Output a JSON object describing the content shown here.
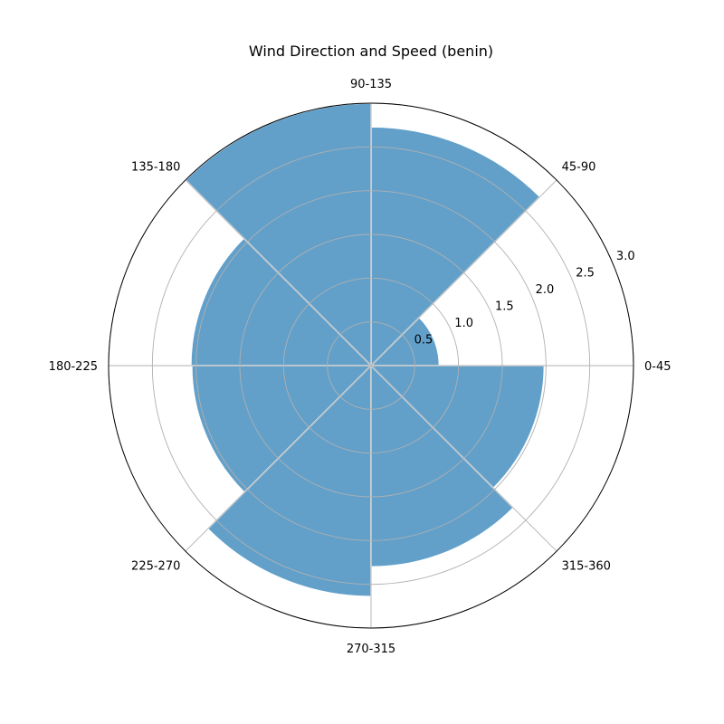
{
  "chart_data": {
    "type": "bar",
    "subtype": "polar",
    "title": "Wind Direction and Speed (benin)",
    "categories": [
      "0-45",
      "45-90",
      "90-135",
      "135-180",
      "180-225",
      "225-270",
      "270-315",
      "315-360"
    ],
    "values": [
      0.78,
      2.73,
      3.0,
      2.06,
      2.05,
      2.64,
      2.3,
      1.98
    ],
    "r_ticks": [
      0.5,
      1.0,
      1.5,
      2.0,
      2.5,
      3.0
    ],
    "r_tick_labels": [
      "0.5",
      "1.0",
      "1.5",
      "2.0",
      "2.5",
      "3.0"
    ],
    "rlim": [
      0,
      3.0
    ],
    "grid": true,
    "bar_color": "#1f77b4",
    "bar_alpha": 0.7,
    "bar_edge_color": "#ffffff"
  }
}
